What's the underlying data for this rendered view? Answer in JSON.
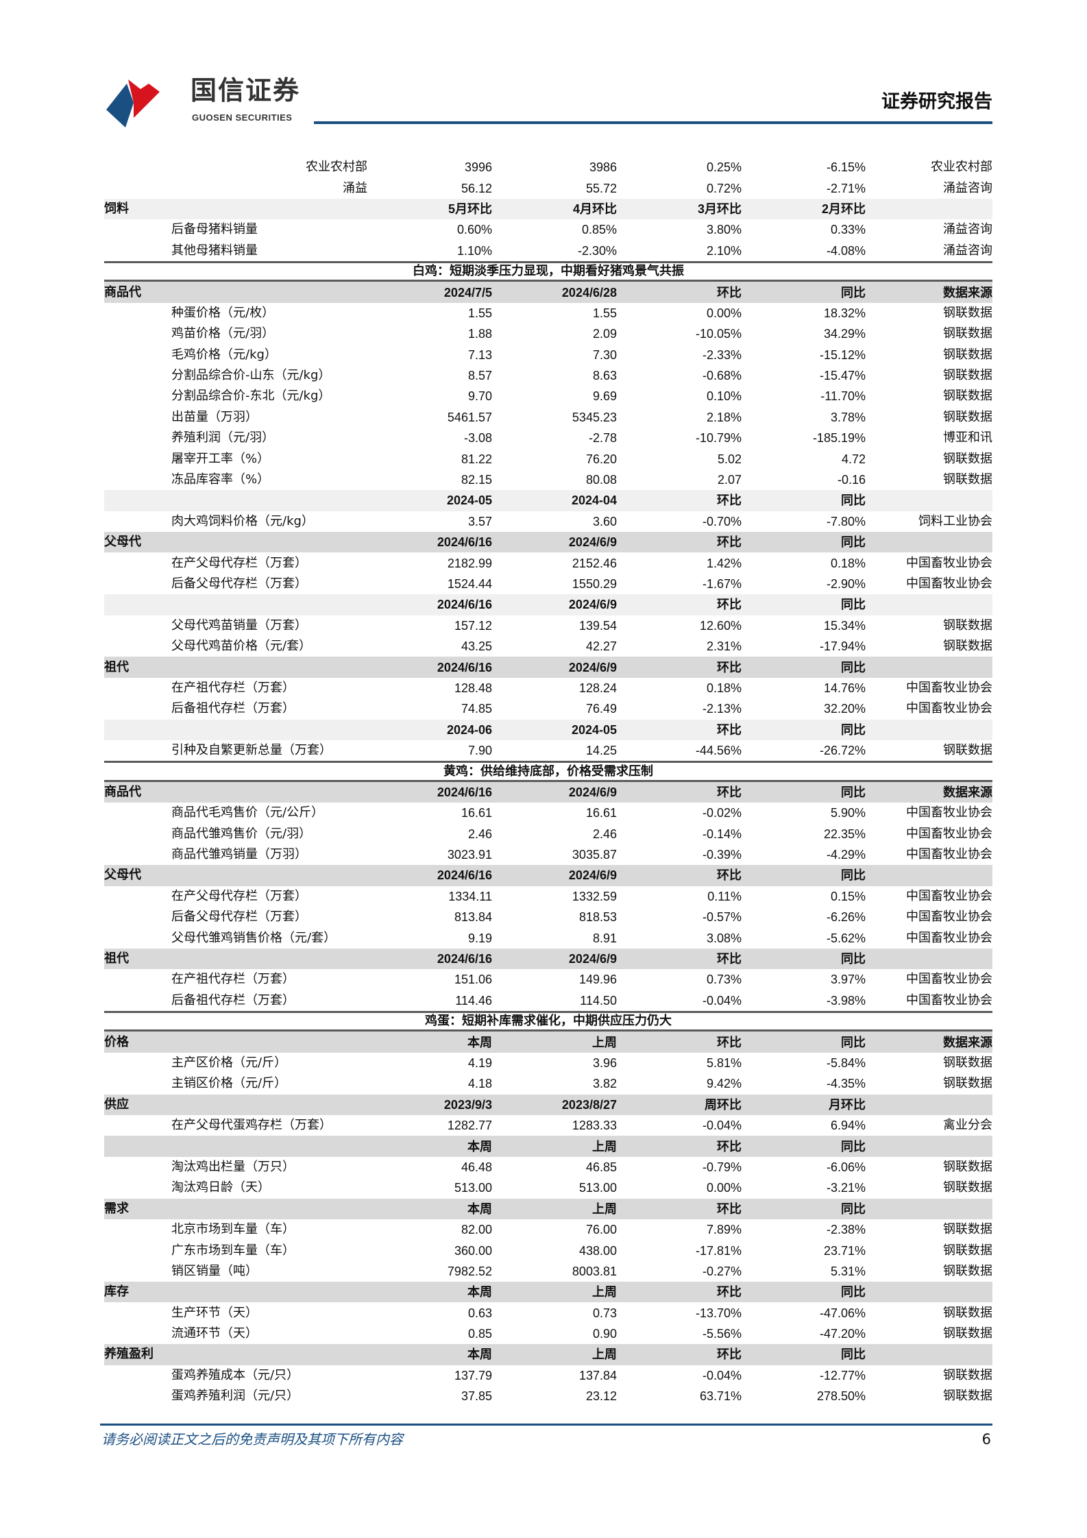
{
  "header": {
    "brand_cn": "国信证券",
    "brand_en": "GUOSEN SECURITIES",
    "report_type": "证券研究报告",
    "colors": {
      "brand_blue": "#1a4f82",
      "brand_red": "#d7141e"
    }
  },
  "rows": [
    {
      "t": "r",
      "label": "农业农村部",
      "v": [
        "3996",
        "3986",
        "0.25%",
        "-6.15%"
      ],
      "src": "农业农村部"
    },
    {
      "t": "r",
      "label": "涌益",
      "v": [
        "56.12",
        "55.72",
        "0.72%",
        "-2.71%"
      ],
      "src": "涌益咨询"
    },
    {
      "t": "h",
      "shade": "light",
      "label": "饲料",
      "cols": [
        "5月环比",
        "4月环比",
        "3月环比",
        "2月环比",
        ""
      ]
    },
    {
      "t": "d",
      "label": "后备母猪料销量",
      "v": [
        "0.60%",
        "0.85%",
        "3.80%",
        "0.33%"
      ],
      "src": "涌益咨询"
    },
    {
      "t": "d",
      "label": "其他母猪料销量",
      "v": [
        "1.10%",
        "-2.30%",
        "2.10%",
        "-4.08%"
      ],
      "src": "涌益咨询"
    },
    {
      "t": "s",
      "title": "白鸡：短期淡季压力显现，中期看好猪鸡景气共振"
    },
    {
      "t": "h",
      "shade": "dark",
      "label": "商品代",
      "cols": [
        "2024/7/5",
        "2024/6/28",
        "环比",
        "同比",
        "数据来源"
      ]
    },
    {
      "t": "d",
      "label": "种蛋价格（元/枚）",
      "v": [
        "1.55",
        "1.55",
        "0.00%",
        "18.32%"
      ],
      "src": "钢联数据"
    },
    {
      "t": "d",
      "label": "鸡苗价格（元/羽）",
      "v": [
        "1.88",
        "2.09",
        "-10.05%",
        "34.29%"
      ],
      "src": "钢联数据"
    },
    {
      "t": "d",
      "label": "毛鸡价格（元/kg）",
      "v": [
        "7.13",
        "7.30",
        "-2.33%",
        "-15.12%"
      ],
      "src": "钢联数据"
    },
    {
      "t": "d",
      "label": "分割品综合价-山东（元/kg）",
      "v": [
        "8.57",
        "8.63",
        "-0.68%",
        "-15.47%"
      ],
      "src": "钢联数据"
    },
    {
      "t": "d",
      "label": "分割品综合价-东北（元/kg）",
      "v": [
        "9.70",
        "9.69",
        "0.10%",
        "-11.70%"
      ],
      "src": "钢联数据"
    },
    {
      "t": "d",
      "label": "出苗量（万羽）",
      "v": [
        "5461.57",
        "5345.23",
        "2.18%",
        "3.78%"
      ],
      "src": "钢联数据"
    },
    {
      "t": "d",
      "label": "养殖利润（元/羽）",
      "v": [
        "-3.08",
        "-2.78",
        "-10.79%",
        "-185.19%"
      ],
      "src": "博亚和讯"
    },
    {
      "t": "d",
      "label": "屠宰开工率（%）",
      "v": [
        "81.22",
        "76.20",
        "5.02",
        "4.72"
      ],
      "src": "钢联数据"
    },
    {
      "t": "d",
      "label": "冻品库容率（%）",
      "v": [
        "82.15",
        "80.08",
        "2.07",
        "-0.16"
      ],
      "src": "钢联数据"
    },
    {
      "t": "h",
      "shade": "light",
      "label": "",
      "cols": [
        "2024-05",
        "2024-04",
        "环比",
        "同比",
        ""
      ]
    },
    {
      "t": "d",
      "label": "肉大鸡饲料价格（元/kg）",
      "v": [
        "3.57",
        "3.60",
        "-0.70%",
        "-7.80%"
      ],
      "src": "饲料工业协会"
    },
    {
      "t": "h",
      "shade": "dark",
      "label": "父母代",
      "cols": [
        "2024/6/16",
        "2024/6/9",
        "环比",
        "同比",
        ""
      ]
    },
    {
      "t": "d",
      "label": "在产父母代存栏（万套）",
      "v": [
        "2182.99",
        "2152.46",
        "1.42%",
        "0.18%"
      ],
      "src": "中国畜牧业协会"
    },
    {
      "t": "d",
      "label": "后备父母代存栏（万套）",
      "v": [
        "1524.44",
        "1550.29",
        "-1.67%",
        "-2.90%"
      ],
      "src": "中国畜牧业协会"
    },
    {
      "t": "h",
      "shade": "light",
      "label": "",
      "cols": [
        "2024/6/16",
        "2024/6/9",
        "环比",
        "同比",
        ""
      ]
    },
    {
      "t": "d",
      "label": "父母代鸡苗销量（万套）",
      "v": [
        "157.12",
        "139.54",
        "12.60%",
        "15.34%"
      ],
      "src": "钢联数据"
    },
    {
      "t": "d",
      "label": "父母代鸡苗价格（元/套）",
      "v": [
        "43.25",
        "42.27",
        "2.31%",
        "-17.94%"
      ],
      "src": "钢联数据"
    },
    {
      "t": "h",
      "shade": "dark",
      "label": "祖代",
      "cols": [
        "2024/6/16",
        "2024/6/9",
        "环比",
        "同比",
        ""
      ]
    },
    {
      "t": "d",
      "label": "在产祖代存栏（万套）",
      "v": [
        "128.48",
        "128.24",
        "0.18%",
        "14.76%"
      ],
      "src": "中国畜牧业协会"
    },
    {
      "t": "d",
      "label": "后备祖代存栏（万套）",
      "v": [
        "74.85",
        "76.49",
        "-2.13%",
        "32.20%"
      ],
      "src": "中国畜牧业协会"
    },
    {
      "t": "h",
      "shade": "light",
      "label": "",
      "cols": [
        "2024-06",
        "2024-05",
        "环比",
        "同比",
        ""
      ]
    },
    {
      "t": "d",
      "label": "引种及自繁更新总量（万套）",
      "v": [
        "7.90",
        "14.25",
        "-44.56%",
        "-26.72%"
      ],
      "src": "钢联数据"
    },
    {
      "t": "s",
      "title": "黄鸡：供给维持底部，价格受需求压制"
    },
    {
      "t": "h",
      "shade": "dark",
      "label": "商品代",
      "cols": [
        "2024/6/16",
        "2024/6/9",
        "环比",
        "同比",
        "数据来源"
      ]
    },
    {
      "t": "d",
      "label": "商品代毛鸡售价（元/公斤）",
      "v": [
        "16.61",
        "16.61",
        "-0.02%",
        "5.90%"
      ],
      "src": "中国畜牧业协会"
    },
    {
      "t": "d",
      "label": "商品代雏鸡售价（元/羽）",
      "v": [
        "2.46",
        "2.46",
        "-0.14%",
        "22.35%"
      ],
      "src": "中国畜牧业协会"
    },
    {
      "t": "d",
      "label": "商品代雏鸡销量（万羽）",
      "v": [
        "3023.91",
        "3035.87",
        "-0.39%",
        "-4.29%"
      ],
      "src": "中国畜牧业协会"
    },
    {
      "t": "h",
      "shade": "dark",
      "label": "父母代",
      "cols": [
        "2024/6/16",
        "2024/6/9",
        "环比",
        "同比",
        ""
      ]
    },
    {
      "t": "d",
      "label": "在产父母代存栏（万套）",
      "v": [
        "1334.11",
        "1332.59",
        "0.11%",
        "0.15%"
      ],
      "src": "中国畜牧业协会"
    },
    {
      "t": "d",
      "label": "后备父母代存栏（万套）",
      "v": [
        "813.84",
        "818.53",
        "-0.57%",
        "-6.26%"
      ],
      "src": "中国畜牧业协会"
    },
    {
      "t": "d",
      "label": "父母代雏鸡销售价格（元/套）",
      "v": [
        "9.19",
        "8.91",
        "3.08%",
        "-5.62%"
      ],
      "src": "中国畜牧业协会"
    },
    {
      "t": "h",
      "shade": "dark",
      "label": "祖代",
      "cols": [
        "2024/6/16",
        "2024/6/9",
        "环比",
        "同比",
        ""
      ]
    },
    {
      "t": "d",
      "label": "在产祖代存栏（万套）",
      "v": [
        "151.06",
        "149.96",
        "0.73%",
        "3.97%"
      ],
      "src": "中国畜牧业协会"
    },
    {
      "t": "d",
      "label": "后备祖代存栏（万套）",
      "v": [
        "114.46",
        "114.50",
        "-0.04%",
        "-3.98%"
      ],
      "src": "中国畜牧业协会"
    },
    {
      "t": "s",
      "title": "鸡蛋：短期补库需求催化，中期供应压力仍大"
    },
    {
      "t": "h",
      "shade": "dark",
      "label": "价格",
      "cols": [
        "本周",
        "上周",
        "环比",
        "同比",
        "数据来源"
      ]
    },
    {
      "t": "d",
      "label": "主产区价格（元/斤）",
      "v": [
        "4.19",
        "3.96",
        "5.81%",
        "-5.84%"
      ],
      "src": "钢联数据"
    },
    {
      "t": "d",
      "label": "主销区价格（元/斤）",
      "v": [
        "4.18",
        "3.82",
        "9.42%",
        "-4.35%"
      ],
      "src": "钢联数据"
    },
    {
      "t": "h",
      "shade": "dark",
      "label": "供应",
      "cols": [
        "2023/9/3",
        "2023/8/27",
        "周环比",
        "月环比",
        ""
      ]
    },
    {
      "t": "d",
      "label": "在产父母代蛋鸡存栏（万套）",
      "v": [
        "1282.77",
        "1283.33",
        "-0.04%",
        "6.94%"
      ],
      "src": "禽业分会"
    },
    {
      "t": "h",
      "shade": "dark",
      "label": "",
      "cols": [
        "本周",
        "上周",
        "环比",
        "同比",
        ""
      ]
    },
    {
      "t": "d",
      "label": "淘汰鸡出栏量（万只）",
      "v": [
        "46.48",
        "46.85",
        "-0.79%",
        "-6.06%"
      ],
      "src": "钢联数据"
    },
    {
      "t": "d",
      "label": "淘汰鸡日龄（天）",
      "v": [
        "513.00",
        "513.00",
        "0.00%",
        "-3.21%"
      ],
      "src": "钢联数据"
    },
    {
      "t": "h",
      "shade": "dark",
      "label": "需求",
      "cols": [
        "本周",
        "上周",
        "环比",
        "同比",
        ""
      ]
    },
    {
      "t": "d",
      "label": "北京市场到车量（车）",
      "v": [
        "82.00",
        "76.00",
        "7.89%",
        "-2.38%"
      ],
      "src": "钢联数据"
    },
    {
      "t": "d",
      "label": "广东市场到车量（车）",
      "v": [
        "360.00",
        "438.00",
        "-17.81%",
        "23.71%"
      ],
      "src": "钢联数据"
    },
    {
      "t": "d",
      "label": "销区销量（吨）",
      "v": [
        "7982.52",
        "8003.81",
        "-0.27%",
        "5.31%"
      ],
      "src": "钢联数据"
    },
    {
      "t": "h",
      "shade": "dark",
      "label": "库存",
      "cols": [
        "本周",
        "上周",
        "环比",
        "同比",
        ""
      ]
    },
    {
      "t": "d",
      "label": "生产环节（天）",
      "v": [
        "0.63",
        "0.73",
        "-13.70%",
        "-47.06%"
      ],
      "src": "钢联数据"
    },
    {
      "t": "d",
      "label": "流通环节（天）",
      "v": [
        "0.85",
        "0.90",
        "-5.56%",
        "-47.20%"
      ],
      "src": "钢联数据"
    },
    {
      "t": "h",
      "shade": "dark",
      "label": "养殖盈利",
      "cols": [
        "本周",
        "上周",
        "环比",
        "同比",
        ""
      ]
    },
    {
      "t": "d",
      "label": "蛋鸡养殖成本（元/只）",
      "v": [
        "137.79",
        "137.84",
        "-0.04%",
        "-12.77%"
      ],
      "src": "钢联数据"
    },
    {
      "t": "d",
      "label": "蛋鸡养殖利润（元/只）",
      "v": [
        "37.85",
        "23.12",
        "63.71%",
        "278.50%"
      ],
      "src": "钢联数据"
    }
  ],
  "footer": {
    "disclaimer": "请务必阅读正文之后的免责声明及其项下所有内容",
    "page_number": "6"
  }
}
